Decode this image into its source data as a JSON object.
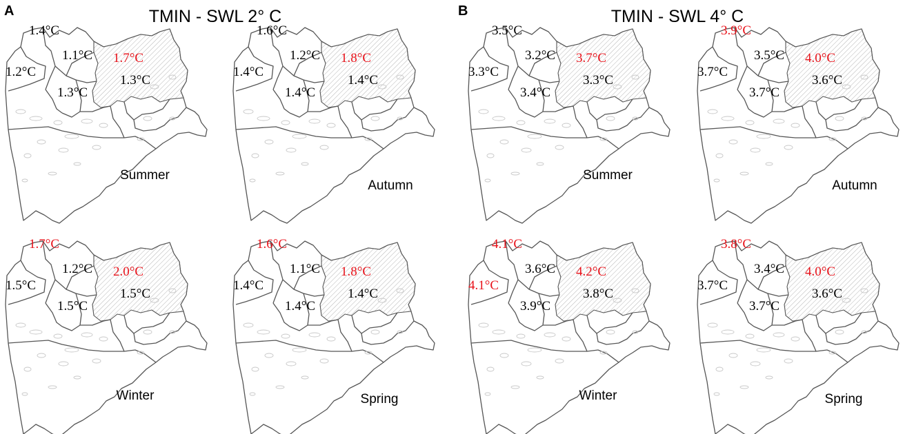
{
  "panels": [
    {
      "letter": "A",
      "title": "TMIN - SWL 2° C",
      "maps": [
        {
          "season": "Summer",
          "regions": [
            {
              "text": "1.4°C",
              "color": "#000000"
            },
            {
              "text": "1.1°C",
              "color": "#000000"
            },
            {
              "text": "1.7°C",
              "color": "#e8121a"
            },
            {
              "text": "1.2°C",
              "color": "#000000"
            },
            {
              "text": "1.3°C",
              "color": "#000000"
            },
            {
              "text": "1.3°C",
              "color": "#000000"
            }
          ]
        },
        {
          "season": "Autumn",
          "regions": [
            {
              "text": "1.6°C",
              "color": "#000000"
            },
            {
              "text": "1.2°C",
              "color": "#000000"
            },
            {
              "text": "1.8°C",
              "color": "#e8121a"
            },
            {
              "text": "1.4°C",
              "color": "#000000"
            },
            {
              "text": "1.4°C",
              "color": "#000000"
            },
            {
              "text": "1.4°C",
              "color": "#000000"
            }
          ]
        },
        {
          "season": "Winter",
          "regions": [
            {
              "text": "1.7°C",
              "color": "#e8121a"
            },
            {
              "text": "1.2°C",
              "color": "#000000"
            },
            {
              "text": "2.0°C",
              "color": "#e8121a"
            },
            {
              "text": "1.5°C",
              "color": "#000000"
            },
            {
              "text": "1.5°C",
              "color": "#000000"
            },
            {
              "text": "1.5°C",
              "color": "#000000"
            }
          ]
        },
        {
          "season": "Spring",
          "regions": [
            {
              "text": "1.6°C",
              "color": "#e8121a"
            },
            {
              "text": "1.1°C",
              "color": "#000000"
            },
            {
              "text": "1.8°C",
              "color": "#e8121a"
            },
            {
              "text": "1.4°C",
              "color": "#000000"
            },
            {
              "text": "1.4°C",
              "color": "#000000"
            },
            {
              "text": "1.4°C",
              "color": "#000000"
            }
          ]
        }
      ]
    },
    {
      "letter": "B",
      "title": "TMIN - SWL 4° C",
      "maps": [
        {
          "season": "Summer",
          "regions": [
            {
              "text": "3.5°C",
              "color": "#000000"
            },
            {
              "text": "3.2°C",
              "color": "#000000"
            },
            {
              "text": "3.7°C",
              "color": "#e8121a"
            },
            {
              "text": "3.3°C",
              "color": "#000000"
            },
            {
              "text": "3.4°C",
              "color": "#000000"
            },
            {
              "text": "3.3°C",
              "color": "#000000"
            }
          ]
        },
        {
          "season": "Autumn",
          "regions": [
            {
              "text": "3.9°C",
              "color": "#e8121a"
            },
            {
              "text": "3.5°C",
              "color": "#000000"
            },
            {
              "text": "4.0°C",
              "color": "#e8121a"
            },
            {
              "text": "3.7°C",
              "color": "#000000"
            },
            {
              "text": "3.7°C",
              "color": "#000000"
            },
            {
              "text": "3.6°C",
              "color": "#000000"
            }
          ]
        },
        {
          "season": "Winter",
          "regions": [
            {
              "text": "4.1°C",
              "color": "#e8121a"
            },
            {
              "text": "3.6°C",
              "color": "#000000"
            },
            {
              "text": "4.2°C",
              "color": "#e8121a"
            },
            {
              "text": "4.1°C",
              "color": "#e8121a"
            },
            {
              "text": "3.9°C",
              "color": "#000000"
            },
            {
              "text": "3.8°C",
              "color": "#000000"
            }
          ]
        },
        {
          "season": "Spring",
          "regions": [
            {
              "text": "3.8°C",
              "color": "#e8121a"
            },
            {
              "text": "3.4°C",
              "color": "#000000"
            },
            {
              "text": "4.0°C",
              "color": "#e8121a"
            },
            {
              "text": "3.7°C",
              "color": "#000000"
            },
            {
              "text": "3.7°C",
              "color": "#000000"
            },
            {
              "text": "3.6°C",
              "color": "#000000"
            }
          ]
        }
      ]
    }
  ]
}
